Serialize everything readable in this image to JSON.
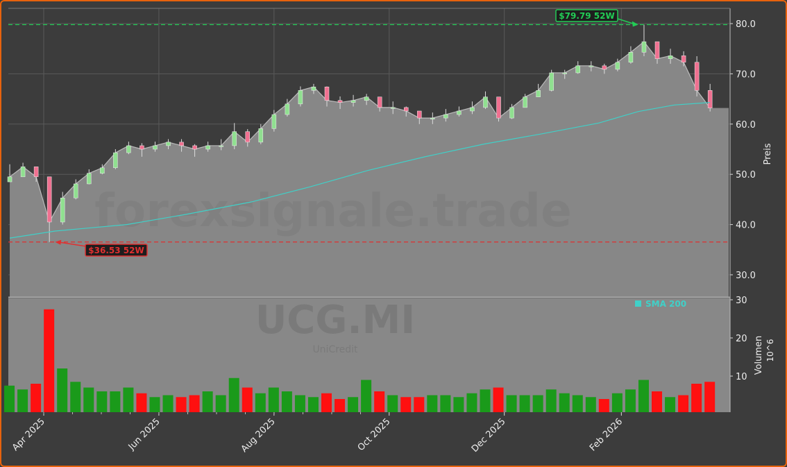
{
  "chart_data": {
    "type": "candlestick",
    "ticker": "UCG.MI",
    "company": "UniCredit",
    "watermark": "forexsignale.trade",
    "price_label": "Preis",
    "volume_label": "Volumen",
    "volume_unit": "10^6",
    "price_ylim": [
      25,
      83
    ],
    "price_ticks": [
      "30.0",
      "40.0",
      "50.0",
      "60.0",
      "70.0",
      "80.0"
    ],
    "volume_ylim": [
      0,
      31
    ],
    "volume_ticks": [
      "10",
      "20",
      "30"
    ],
    "x_ticks": [
      {
        "date": "2025-04-01",
        "label": "Apr 2025"
      },
      {
        "date": "2025-06-01",
        "label": "Jun 2025"
      },
      {
        "date": "2025-08-01",
        "label": "Aug 2025"
      },
      {
        "date": "2025-10-01",
        "label": "Oct 2025"
      },
      {
        "date": "2025-12-01",
        "label": "Dec 2025"
      },
      {
        "date": "2026-02-01",
        "label": "Feb 2026"
      }
    ],
    "grid": true,
    "legend": {
      "position": "top-right",
      "entries": [
        {
          "name": "SMA 200",
          "color": "#40d0c8"
        }
      ]
    },
    "high_52w": {
      "value": 79.79,
      "date": "2026-02-10",
      "label": "$79.79 52W",
      "color": "#22cc55"
    },
    "low_52w": {
      "value": 36.53,
      "date": "2025-04-07",
      "label": "$36.53 52W",
      "color": "#e03030"
    },
    "colors": {
      "up": "#1a9a1a",
      "down": "#ff1010",
      "area": "#878787",
      "sma": "#40d0c8",
      "candle_up": "#90e090",
      "candle_down": "#f07090"
    },
    "dates": [
      "2025-03-14",
      "2025-03-21",
      "2025-03-28",
      "2025-04-04",
      "2025-04-11",
      "2025-04-18",
      "2025-04-25",
      "2025-05-02",
      "2025-05-09",
      "2025-05-16",
      "2025-05-23",
      "2025-05-30",
      "2025-06-06",
      "2025-06-13",
      "2025-06-20",
      "2025-06-27",
      "2025-07-04",
      "2025-07-11",
      "2025-07-18",
      "2025-07-25",
      "2025-08-01",
      "2025-08-08",
      "2025-08-15",
      "2025-08-22",
      "2025-08-29",
      "2025-09-05",
      "2025-09-12",
      "2025-09-19",
      "2025-09-26",
      "2025-10-03",
      "2025-10-10",
      "2025-10-17",
      "2025-10-24",
      "2025-10-31",
      "2025-11-07",
      "2025-11-14",
      "2025-11-21",
      "2025-11-28",
      "2025-12-05",
      "2025-12-12",
      "2025-12-19",
      "2025-12-26",
      "2026-01-02",
      "2026-01-09",
      "2026-01-16",
      "2026-01-23",
      "2026-01-30",
      "2026-02-06",
      "2026-02-13",
      "2026-02-20",
      "2026-02-27",
      "2026-03-06",
      "2026-03-13",
      "2026-03-20"
    ],
    "close": [
      49.5,
      51.5,
      49.5,
      40.5,
      45.3,
      48.1,
      50.2,
      51.3,
      54.3,
      55.7,
      55.0,
      55.7,
      56.4,
      55.7,
      55.0,
      55.7,
      55.7,
      58.5,
      56.4,
      59.1,
      61.9,
      64.0,
      66.7,
      67.4,
      64.7,
      64.3,
      64.7,
      65.4,
      63.3,
      63.3,
      62.6,
      61.2,
      61.2,
      61.9,
      62.6,
      63.3,
      65.4,
      61.2,
      63.3,
      65.4,
      66.7,
      70.2,
      70.2,
      71.6,
      71.6,
      70.9,
      72.3,
      74.3,
      76.4,
      73.0,
      73.6,
      72.3,
      66.7,
      63.2
    ],
    "high": [
      52.0,
      52.3,
      51.0,
      49.0,
      46.5,
      49.0,
      51.0,
      52.0,
      55.0,
      56.5,
      56.2,
      56.5,
      57.0,
      57.0,
      56.0,
      56.5,
      57.0,
      60.2,
      59.0,
      60.0,
      62.8,
      65.0,
      67.5,
      68.0,
      67.5,
      65.5,
      65.8,
      66.0,
      65.0,
      64.5,
      63.5,
      62.5,
      62.3,
      63.0,
      63.5,
      64.5,
      66.5,
      65.0,
      64.0,
      66.0,
      68.0,
      70.8,
      70.8,
      72.5,
      72.5,
      72.0,
      73.0,
      75.5,
      79.79,
      76.0,
      75.0,
      74.5,
      73.5,
      68.0
    ],
    "low": [
      48.5,
      50.0,
      48.5,
      36.53,
      40.0,
      45.0,
      48.0,
      50.0,
      51.0,
      54.0,
      53.5,
      54.5,
      55.0,
      54.5,
      53.5,
      54.5,
      54.8,
      55.0,
      55.5,
      56.0,
      58.5,
      61.5,
      63.5,
      66.0,
      63.5,
      63.0,
      63.5,
      63.8,
      62.5,
      62.0,
      61.5,
      60.0,
      60.0,
      60.5,
      61.5,
      62.0,
      63.0,
      60.5,
      61.0,
      63.5,
      65.5,
      66.5,
      69.0,
      70.0,
      70.5,
      70.0,
      70.5,
      72.0,
      73.5,
      72.0,
      72.0,
      71.5,
      65.5,
      62.5
    ],
    "volume": [
      7.5,
      6.5,
      8.0,
      27.5,
      12.0,
      8.5,
      7.0,
      6.0,
      6.0,
      7.0,
      5.5,
      4.5,
      5.0,
      4.5,
      5.0,
      6.0,
      5.0,
      9.5,
      7.0,
      5.5,
      7.0,
      6.0,
      5.0,
      4.5,
      5.5,
      4.0,
      4.5,
      9.0,
      6.0,
      5.0,
      4.5,
      4.5,
      5.0,
      5.0,
      4.5,
      5.5,
      6.5,
      7.0,
      5.0,
      5.0,
      5.0,
      6.5,
      5.5,
      5.0,
      4.5,
      4.0,
      5.5,
      6.5,
      9.0,
      6.0,
      4.5,
      5.0,
      8.0,
      8.5
    ],
    "sma200": [
      {
        "date": "2025-03-14",
        "value": 37.3
      },
      {
        "date": "2025-04-07",
        "value": 38.7
      },
      {
        "date": "2025-05-15",
        "value": 40.0
      },
      {
        "date": "2025-06-15",
        "value": 42.0
      },
      {
        "date": "2025-07-20",
        "value": 44.5
      },
      {
        "date": "2025-08-20",
        "value": 47.5
      },
      {
        "date": "2025-09-20",
        "value": 50.8
      },
      {
        "date": "2025-10-20",
        "value": 53.5
      },
      {
        "date": "2025-11-20",
        "value": 56.0
      },
      {
        "date": "2025-12-20",
        "value": 58.0
      },
      {
        "date": "2026-01-20",
        "value": 60.2
      },
      {
        "date": "2026-02-10",
        "value": 62.5
      },
      {
        "date": "2026-03-01",
        "value": 63.8
      },
      {
        "date": "2026-03-20",
        "value": 64.3
      }
    ]
  }
}
